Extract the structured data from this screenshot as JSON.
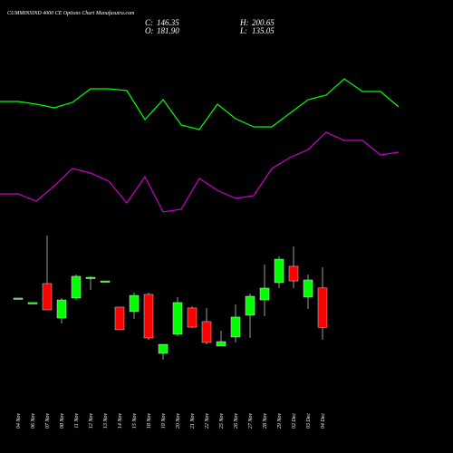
{
  "chart_data": [
    {
      "type": "line",
      "ylim": [
        0,
        500
      ],
      "series": [
        {
          "color": "#00ff00",
          "values": [
            388,
            388,
            385,
            381,
            387,
            402,
            402,
            400,
            368,
            390,
            362,
            357,
            385,
            369,
            360,
            360,
            375,
            390,
            395,
            413,
            399,
            399,
            382
          ]
        },
        {
          "color": "#cc00cc",
          "values": [
            286,
            286,
            278,
            295,
            314,
            309,
            300,
            276,
            305,
            266,
            269,
            303,
            290,
            281,
            284,
            314,
            326,
            335,
            354,
            345,
            345,
            329,
            332
          ]
        }
      ]
    },
    {
      "type": "candlestick",
      "title": "CUMMINSIND 4000 CE Options Chart Munafasutra.com",
      "header": [
        {
          "name": "C:",
          "value_label": "146.35"
        },
        {
          "name": "H:",
          "value_label": "200.65"
        },
        {
          "name": "O:",
          "value_label": "181.90"
        },
        {
          "name": "L:",
          "value_label": "135.05"
        }
      ],
      "categories": [
        "04 Nov",
        "06 Nov",
        "07 Nov",
        "08 Nov",
        "11 Nov",
        "12 Nov",
        "13 Nov",
        "14 Nov",
        "15 Nov",
        "18 Nov",
        "19 Nov",
        "20 Nov",
        "21 Nov",
        "22 Nov",
        "25 Nov",
        "26 Nov",
        "27 Nov",
        "28 Nov",
        "29 Nov",
        "02 Dec",
        "03 Dec",
        "04 Dec"
      ],
      "open": [
        172.8,
        168.7,
        185.9,
        154.7,
        172.8,
        191.6,
        188.3,
        164.6,
        160.5,
        176.1,
        122.7,
        140.0,
        163.8,
        151.5,
        129.3,
        137.5,
        157.2,
        171.1,
        186.7,
        201.5,
        173.6,
        181.9
      ],
      "high": [
        172.8,
        168.7,
        229.4,
        172.8,
        194.1,
        192.5,
        188.3,
        164.6,
        177.7,
        177.7,
        130.9,
        173.6,
        165.4,
        163.8,
        143.3,
        167.0,
        176.9,
        203.1,
        210.5,
        219.5,
        194.1,
        200.65
      ],
      "low": [
        172.8,
        168.7,
        162.1,
        149.8,
        171.1,
        180.2,
        188.3,
        144.1,
        153.9,
        135.1,
        117.0,
        138.3,
        145.7,
        131.0,
        129.3,
        132.6,
        136.7,
        156.4,
        181.8,
        181.8,
        162.9,
        135.05
      ],
      "close": [
        172.8,
        168.7,
        162.1,
        171.1,
        192.5,
        191.6,
        188.3,
        144.1,
        175.2,
        136.7,
        130.9,
        168.7,
        146.5,
        132.6,
        133.4,
        155.6,
        174.4,
        181.8,
        208.0,
        188.3,
        189.2,
        146.35
      ],
      "up_color": "#00ff00",
      "down_color": "#ff0000",
      "ylim": [
        32.55,
        442.55
      ]
    }
  ]
}
